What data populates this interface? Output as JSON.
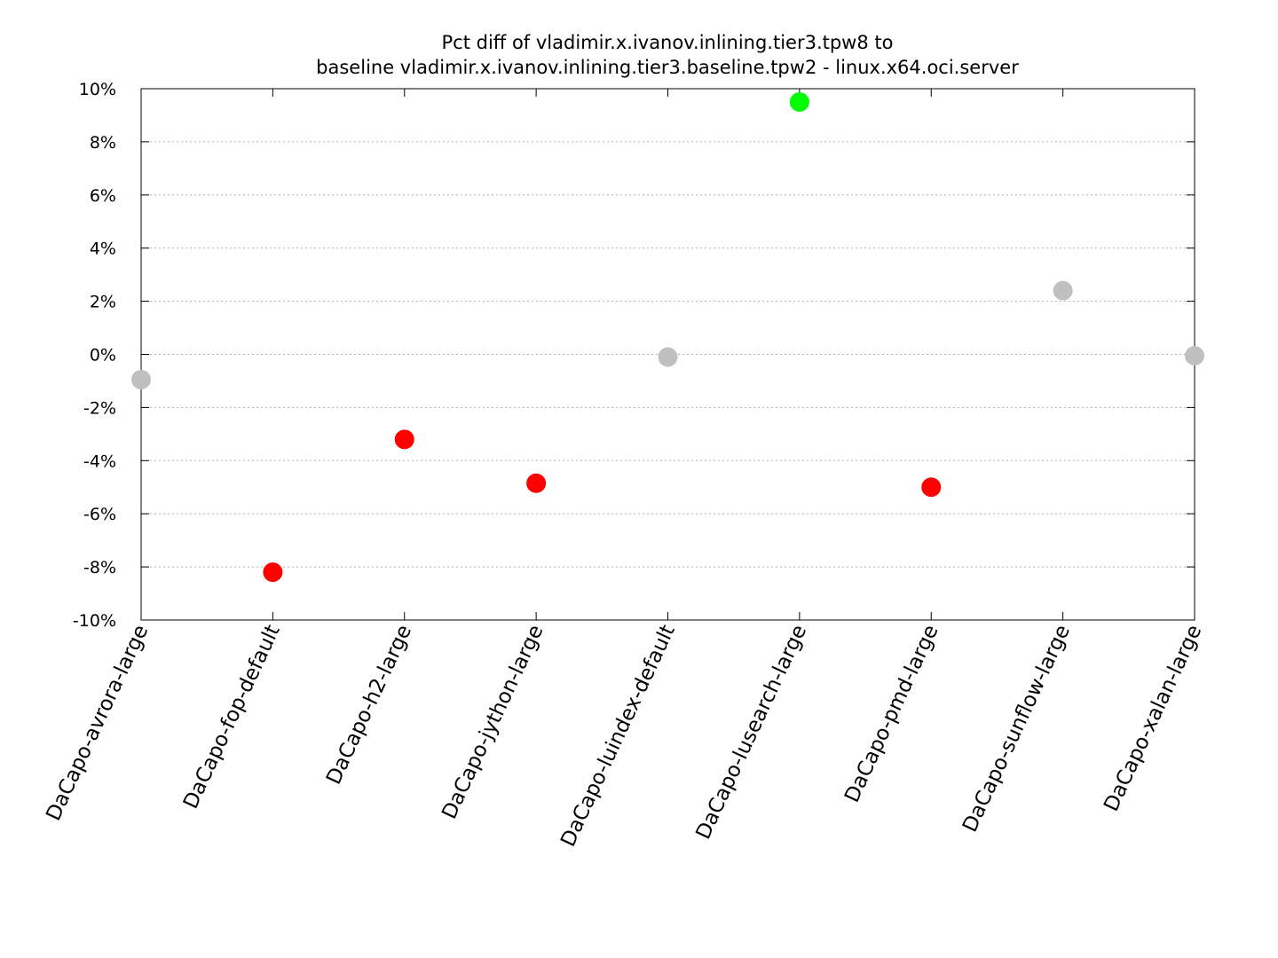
{
  "chart_data": {
    "type": "scatter",
    "title_line1": "Pct diff of vladimir.x.ivanov.inlining.tier3.tpw8 to",
    "title_line2": "baseline vladimir.x.ivanov.inlining.tier3.baseline.tpw2 - linux.x64.oci.server",
    "xlabel": "",
    "ylabel": "",
    "ylim": [
      -10,
      10
    ],
    "yticks": [
      -10,
      -8,
      -6,
      -4,
      -2,
      0,
      2,
      4,
      6,
      8,
      10
    ],
    "ytick_suffix": "%",
    "grid": true,
    "categories": [
      "DaCapo-avrora-large",
      "DaCapo-fop-default",
      "DaCapo-h2-large",
      "DaCapo-jython-large",
      "DaCapo-luindex-default",
      "DaCapo-lusearch-large",
      "DaCapo-pmd-large",
      "DaCapo-sunflow-large",
      "DaCapo-xalan-large"
    ],
    "values": [
      -0.95,
      -8.2,
      -3.2,
      -4.85,
      -0.1,
      9.5,
      -5.0,
      2.4,
      -0.05
    ],
    "point_status": [
      "neutral",
      "regression",
      "regression",
      "regression",
      "neutral",
      "improvement",
      "regression",
      "neutral",
      "neutral"
    ],
    "colors": {
      "neutral": "#c0c0c0",
      "regression": "#ff0000",
      "improvement": "#00ff00"
    }
  }
}
